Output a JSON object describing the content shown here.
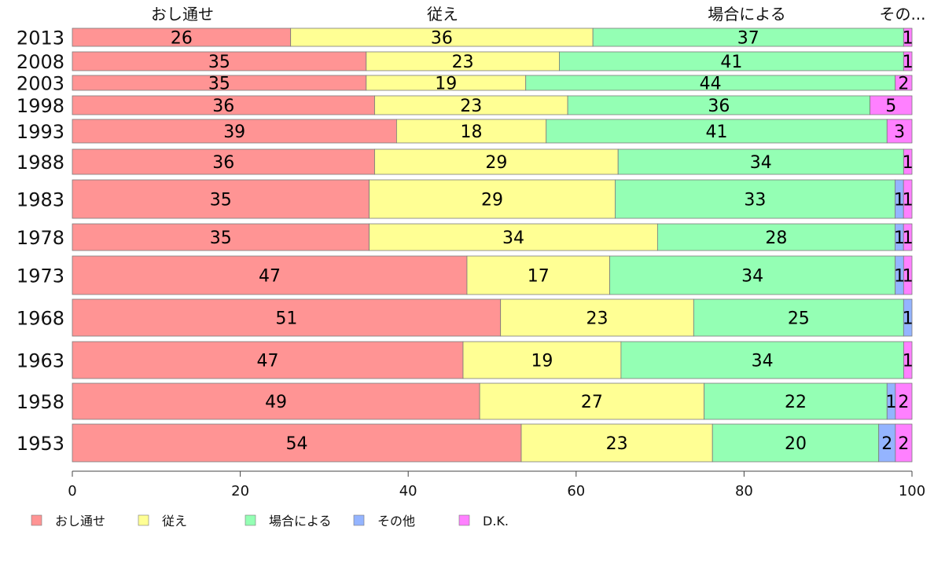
{
  "chart_data": {
    "type": "bar",
    "orientation": "horizontal",
    "stacked": true,
    "categories": [
      "2013",
      "2008",
      "2003",
      "1998",
      "1993",
      "1988",
      "1983",
      "1978",
      "1973",
      "1968",
      "1963",
      "1958",
      "1953"
    ],
    "series": [
      {
        "name": "おし通せ",
        "color": "#ff9494",
        "values": [
          26,
          35,
          35,
          36,
          39,
          36,
          35,
          35,
          47,
          51,
          47,
          49,
          54
        ]
      },
      {
        "name": "従え",
        "color": "#ffff94",
        "values": [
          36,
          23,
          19,
          23,
          18,
          29,
          29,
          34,
          17,
          23,
          19,
          27,
          23
        ]
      },
      {
        "name": "場合による",
        "color": "#94ffb4",
        "values": [
          37,
          41,
          44,
          36,
          41,
          34,
          33,
          28,
          34,
          25,
          34,
          22,
          20
        ]
      },
      {
        "name": "その他",
        "color": "#94b4ff",
        "values": [
          0,
          0,
          0,
          0,
          0,
          0,
          1,
          1,
          1,
          1,
          0,
          1,
          2
        ]
      },
      {
        "name": "D.K.",
        "color": "#ff80ff",
        "values": [
          1,
          1,
          2,
          5,
          3,
          1,
          1,
          1,
          1,
          0,
          1,
          2,
          2
        ]
      }
    ],
    "segment_labels": [
      [
        "26",
        "36",
        "37",
        "",
        "1"
      ],
      [
        "35",
        "23",
        "41",
        "",
        "1"
      ],
      [
        "35",
        "19",
        "44",
        "",
        "2"
      ],
      [
        "36",
        "23",
        "36",
        "",
        "5"
      ],
      [
        "39",
        "18",
        "41",
        "",
        "3"
      ],
      [
        "36",
        "29",
        "34",
        "",
        "1"
      ],
      [
        "35",
        "29",
        "33",
        "1",
        "1"
      ],
      [
        "35",
        "34",
        "28",
        "1",
        "1"
      ],
      [
        "47",
        "17",
        "34",
        "1",
        "1"
      ],
      [
        "51",
        "23",
        "25",
        "1",
        ""
      ],
      [
        "47",
        "19",
        "34",
        "",
        "1"
      ],
      [
        "49",
        "27",
        "22",
        "1",
        "2"
      ],
      [
        "54",
        "23",
        "20",
        "2",
        "2"
      ]
    ],
    "header_labels": [
      "おし通せ",
      "従え",
      "場合による",
      "その..."
    ],
    "x_ticks": [
      "0",
      "20",
      "40",
      "60",
      "80",
      "100"
    ],
    "xlim": [
      0,
      100
    ],
    "grid": false,
    "legend_position": "bottom"
  }
}
